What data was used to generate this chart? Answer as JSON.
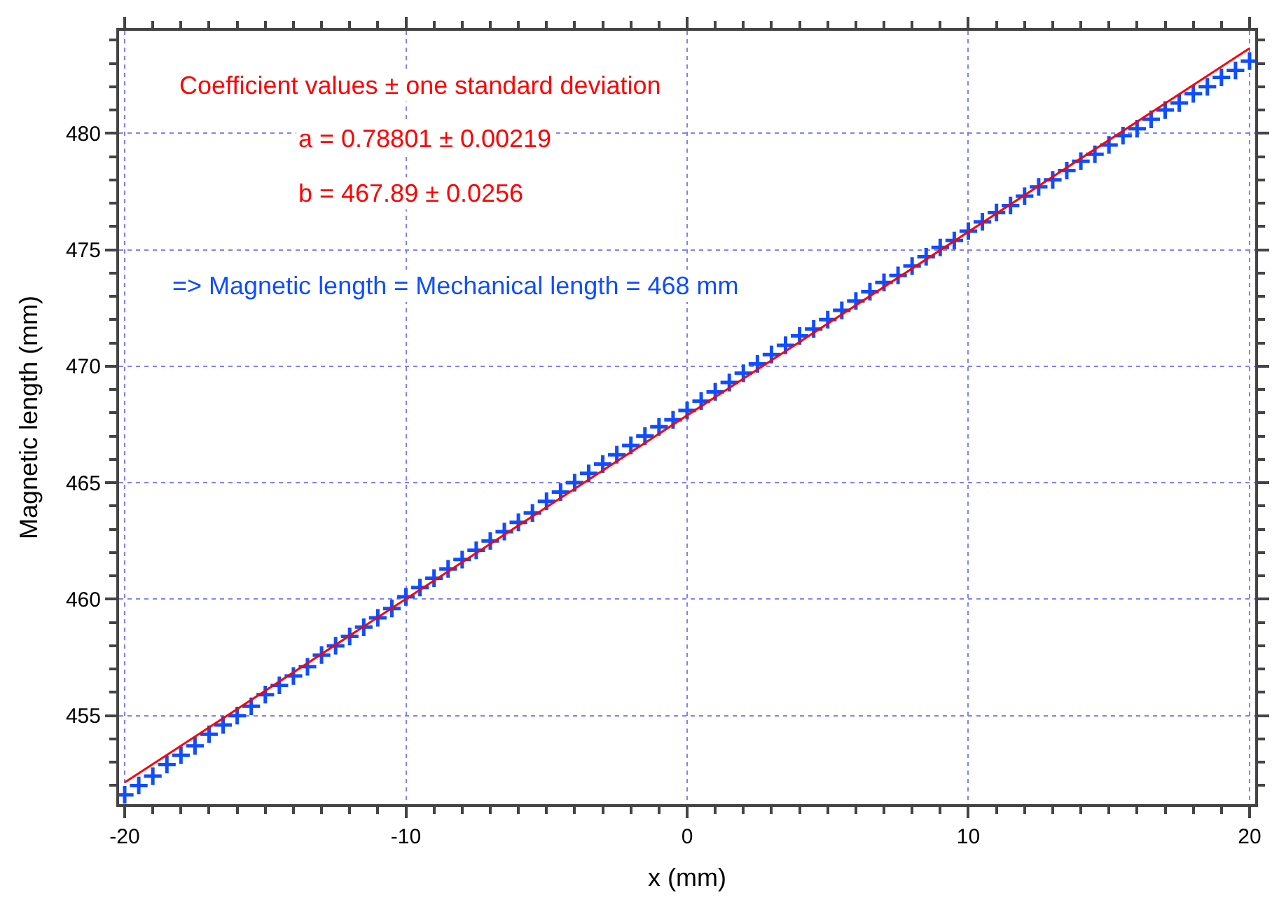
{
  "chart_data": {
    "type": "scatter",
    "xlabel": "x (mm)",
    "ylabel": "Magnetic length (mm)",
    "annotations": [
      "Coefficient values ± one standard deviation",
      "a = 0.78801 ± 0.00219",
      "b = 467.89 ± 0.0256",
      "=> Magnetic length = Mechanical length = 468 mm"
    ],
    "series": [
      {
        "color": "#0f4dff",
        "marker": "cross",
        "x": [
          -20,
          -19.5,
          -19,
          -18.5,
          -18,
          -17.5,
          -17,
          -16.5,
          -16,
          -15.5,
          -15,
          -14.5,
          -14,
          -13.5,
          -13,
          -12.5,
          -12,
          -11.5,
          -11,
          -10.5,
          -10,
          -9.5,
          -9,
          -8.5,
          -8,
          -7.5,
          -7,
          -6.5,
          -6,
          -5.5,
          -5,
          -4.5,
          -4,
          -3.5,
          -3,
          -2.5,
          -2,
          -1.5,
          -1,
          -0.5,
          0,
          0.5,
          1,
          1.5,
          2,
          2.5,
          3,
          3.5,
          4,
          4.5,
          5,
          5.5,
          6,
          6.5,
          7,
          7.5,
          8,
          8.5,
          9,
          9.5,
          10,
          10.5,
          11,
          11.5,
          12,
          12.5,
          13,
          13.5,
          14,
          14.5,
          15,
          15.5,
          16,
          16.5,
          17,
          17.5,
          18,
          18.5,
          19,
          19.5,
          20
        ],
        "values": [
          451.6,
          452.0,
          452.4,
          452.9,
          453.3,
          453.7,
          454.2,
          454.6,
          455.0,
          455.4,
          455.9,
          456.3,
          456.7,
          457.1,
          457.6,
          458.0,
          458.4,
          458.8,
          459.2,
          459.6,
          460.1,
          460.5,
          460.9,
          461.3,
          461.7,
          462.1,
          462.5,
          462.9,
          463.3,
          463.7,
          464.2,
          464.6,
          465.0,
          465.4,
          465.8,
          466.2,
          466.6,
          467.0,
          467.4,
          467.7,
          468.1,
          468.5,
          468.9,
          469.3,
          469.7,
          470.1,
          470.5,
          470.9,
          471.3,
          471.6,
          472.0,
          472.4,
          472.8,
          473.2,
          473.6,
          473.9,
          474.3,
          474.7,
          475.1,
          475.4,
          475.8,
          476.2,
          476.6,
          476.9,
          477.3,
          477.7,
          478.0,
          478.4,
          478.8,
          479.1,
          479.5,
          479.9,
          480.2,
          480.6,
          481.0,
          481.3,
          481.7,
          482.0,
          482.4,
          482.7,
          483.1
        ]
      },
      {
        "type": "line",
        "color": "#ff0000",
        "x": [
          -20,
          20
        ],
        "values": [
          452.13,
          483.65
        ]
      }
    ],
    "xlim": [
      -20.2,
      20.2
    ],
    "ylim": [
      451.2,
      484.4
    ],
    "xticks": [
      -20,
      -10,
      0,
      10,
      20
    ],
    "yticks": [
      455,
      460,
      465,
      470,
      475,
      480
    ],
    "grid": true
  }
}
